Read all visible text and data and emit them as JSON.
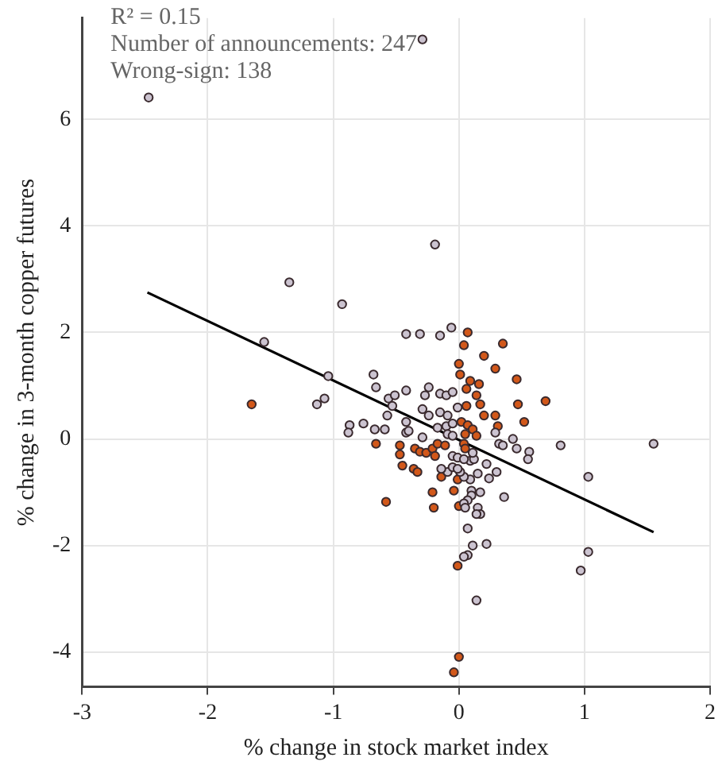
{
  "chart_data": {
    "type": "scatter",
    "xlabel": "% change in stock market index",
    "ylabel": "% change in 3-month copper futures",
    "xlim": [
      -3,
      2
    ],
    "ylim": [
      -4.65,
      7.9
    ],
    "xticks": [
      -3,
      -2,
      -1,
      0,
      1,
      2
    ],
    "yticks": [
      -4,
      -2,
      0,
      2,
      4,
      6
    ],
    "grid": true,
    "legend": false,
    "marker": "circle",
    "annotations": [
      "R² = 0.15",
      "Number of announcements: 247",
      "Wrong-sign: 138"
    ],
    "series": [
      {
        "color": "#cbc3d0",
        "x": [
          -2.47,
          -0.29,
          -0.19,
          -1.35,
          -0.93,
          -1.55,
          -0.42,
          -0.31,
          -0.15,
          -0.06,
          -0.68,
          -1.04,
          -1.07,
          -1.13,
          -0.66,
          -0.42,
          -0.24,
          -0.27,
          -0.15,
          -0.1,
          -0.05,
          -0.56,
          -0.51,
          -0.53,
          -0.29,
          -0.15,
          -0.09,
          -0.01,
          -0.57,
          -0.76,
          -0.87,
          -0.88,
          -0.67,
          -0.59,
          -0.42,
          -0.42,
          -0.29,
          -0.24,
          -0.17,
          -0.1,
          -0.05,
          -0.09,
          -0.05,
          -0.4,
          0.29,
          0.32,
          0.43,
          0.35,
          0.46,
          0.56,
          0.55,
          0.81,
          1.03,
          1.03,
          0.97,
          0.36,
          0.3,
          0.24,
          0.22,
          0.17,
          0.1,
          0.1,
          0.07,
          0.04,
          0.05,
          0.15,
          0.17,
          0.14,
          0.07,
          0.11,
          0.22,
          0.07,
          0.04,
          0.14,
          0.09,
          0.12,
          0.15,
          0.09,
          0.04,
          0.01,
          -0.09,
          -0.14,
          -0.05,
          -0.01,
          -0.05,
          -0.01,
          0.04,
          0.11,
          1.55
        ],
        "values": [
          6.41,
          7.5,
          3.65,
          2.94,
          2.53,
          1.82,
          1.97,
          1.97,
          1.94,
          2.09,
          1.21,
          1.18,
          0.76,
          0.65,
          0.97,
          0.91,
          0.97,
          0.82,
          0.85,
          0.82,
          0.88,
          0.76,
          0.82,
          0.62,
          0.56,
          0.5,
          0.44,
          0.59,
          0.44,
          0.29,
          0.26,
          0.12,
          0.18,
          0.18,
          0.32,
          0.12,
          0.03,
          0.44,
          0.21,
          0.24,
          0.29,
          0.09,
          0.06,
          0.15,
          0.12,
          -0.09,
          0,
          -0.12,
          -0.18,
          -0.24,
          -0.38,
          -0.12,
          -0.71,
          -2.12,
          -2.47,
          -1.09,
          -0.62,
          -0.74,
          -0.47,
          -1,
          -0.97,
          -1.06,
          -1.15,
          -1.21,
          -1.29,
          -1.29,
          -1.41,
          -1.41,
          -1.68,
          -2,
          -1.97,
          -2.18,
          -2.21,
          -3.03,
          -0.41,
          -0.38,
          -0.65,
          -0.76,
          -0.71,
          -0.62,
          -0.62,
          -0.56,
          -0.53,
          -0.56,
          -0.32,
          -0.35,
          -0.38,
          -0.26,
          -0.09
        ]
      },
      {
        "color": "#d2581a",
        "x": [
          -1.65,
          0.07,
          0.04,
          0.35,
          0,
          0.2,
          0.29,
          0.01,
          0.46,
          0.09,
          0.16,
          0.06,
          0.14,
          0.17,
          0.06,
          0.2,
          0.29,
          0.47,
          0.69,
          0.52,
          0.31,
          0.02,
          0.07,
          0.11,
          0.05,
          0.14,
          -0.66,
          -0.47,
          -0.47,
          -0.45,
          -0.36,
          -0.33,
          -0.35,
          -0.31,
          -0.26,
          -0.21,
          -0.19,
          -0.17,
          -0.11,
          -0.21,
          -0.2,
          -0.58,
          -0.14,
          -0.04,
          0,
          -0.01,
          0,
          -0.04,
          -0.01,
          0.04,
          0.05
        ],
        "values": [
          0.65,
          2,
          1.76,
          1.79,
          1.41,
          1.56,
          1.32,
          1.21,
          1.12,
          1.09,
          1.03,
          0.94,
          0.82,
          0.65,
          0.62,
          0.44,
          0.44,
          0.65,
          0.71,
          0.32,
          0.24,
          0.32,
          0.26,
          0.18,
          0.09,
          0.06,
          -0.09,
          -0.12,
          -0.29,
          -0.5,
          -0.56,
          -0.62,
          -0.18,
          -0.24,
          -0.26,
          -0.18,
          -0.32,
          -0.09,
          -0.12,
          -1,
          -1.29,
          -1.18,
          -0.71,
          -0.97,
          -1.26,
          -2.38,
          -4.09,
          -4.38,
          -0.76,
          -0.09,
          -0.18
        ]
      },
      {
        "type": "line",
        "color": "#000000",
        "marker": "none",
        "line_style": "solid",
        "x": [
          -2.48,
          1.55
        ],
        "values": [
          2.75,
          -1.75
        ]
      }
    ]
  }
}
